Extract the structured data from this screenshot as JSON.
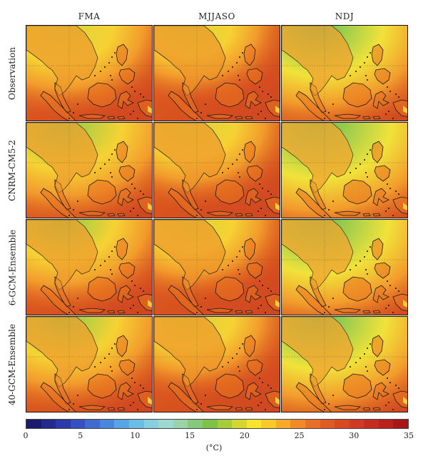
{
  "columns": [
    "FMA",
    "MJJASO",
    "NDJ"
  ],
  "rows": [
    "Observation",
    "CNRM-CM5-2",
    "6-GCM-Ensemble",
    "40-GCM-Ensemble"
  ],
  "panel_style": {
    "Observation": [
      {
        "cool": 0.55
      },
      {
        "cool": 0.35
      },
      {
        "cool": 0.85
      }
    ],
    "CNRM-CM5-2": [
      {
        "cool": 0.75
      },
      {
        "cool": 0.45
      },
      {
        "cool": 1.0
      }
    ],
    "6-GCM-Ensemble": [
      {
        "cool": 0.6
      },
      {
        "cool": 0.4
      },
      {
        "cool": 0.95
      }
    ],
    "40-GCM-Ensemble": [
      {
        "cool": 0.65
      },
      {
        "cool": 0.4
      },
      {
        "cool": 0.9
      }
    ]
  },
  "colorbar": {
    "min": 0,
    "max": 35,
    "ticks": [
      "0",
      "5",
      "10",
      "15",
      "20",
      "25",
      "30",
      "35"
    ],
    "unit": "(°C)",
    "colors": [
      "#1a1a6e",
      "#222a8c",
      "#2b3aa8",
      "#3550c0",
      "#3f6ad0",
      "#4a86dc",
      "#58a4e4",
      "#6bbde6",
      "#86cfe0",
      "#9fd8cf",
      "#9cd3a6",
      "#86c97a",
      "#7ec24a",
      "#a6cc3a",
      "#d6d630",
      "#f6e52a",
      "#f9c92a",
      "#f7a92a",
      "#f18a2a",
      "#e96f28",
      "#e05a26",
      "#d84a24",
      "#cf3b22",
      "#c42d20",
      "#b8211c",
      "#a81618"
    ]
  }
}
